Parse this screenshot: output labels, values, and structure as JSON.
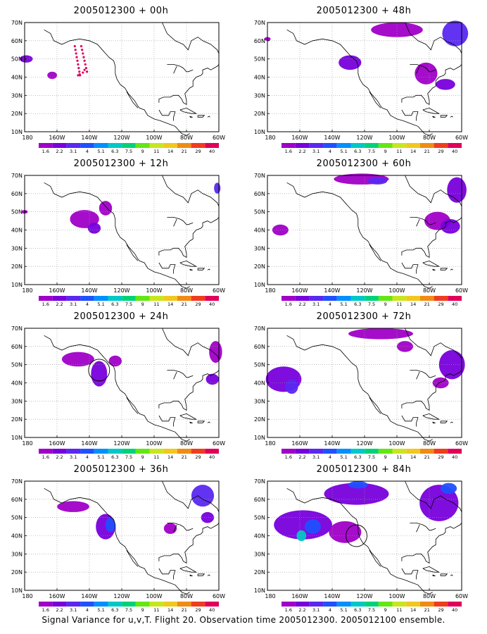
{
  "panels": [
    {
      "title": "2005012300 + 00h"
    },
    {
      "title": "2005012300 + 48h"
    },
    {
      "title": "2005012300 + 12h"
    },
    {
      "title": "2005012300 + 60h"
    },
    {
      "title": "2005012300 + 24h"
    },
    {
      "title": "2005012300 + 72h"
    },
    {
      "title": "2005012300 + 36h"
    },
    {
      "title": "2005012300 + 84h"
    }
  ],
  "axes": {
    "lat_labels": [
      "70N",
      "60N",
      "50N",
      "40N",
      "30N",
      "20N",
      "10N"
    ],
    "lon_labels": [
      "180",
      "160W",
      "140W",
      "120W",
      "100W",
      "80W",
      "60W"
    ]
  },
  "colorbar": {
    "labels": [
      "1.6",
      "2.2",
      "3.1",
      "4",
      "5.1",
      "6.3",
      "7.5",
      "9",
      "11",
      "14",
      "21",
      "29",
      "40"
    ],
    "colors": [
      "#a000c8",
      "#7800dc",
      "#5a28f0",
      "#2050ff",
      "#0090ff",
      "#00c8c8",
      "#00d278",
      "#64e614",
      "#c8e61e",
      "#f0c81e",
      "#f08c14",
      "#f03c1e",
      "#e0005a"
    ]
  },
  "footer": "Signal Variance for u,v,T. Flight 20. Observation time 2005012300. 2005012100 ensemble."
}
